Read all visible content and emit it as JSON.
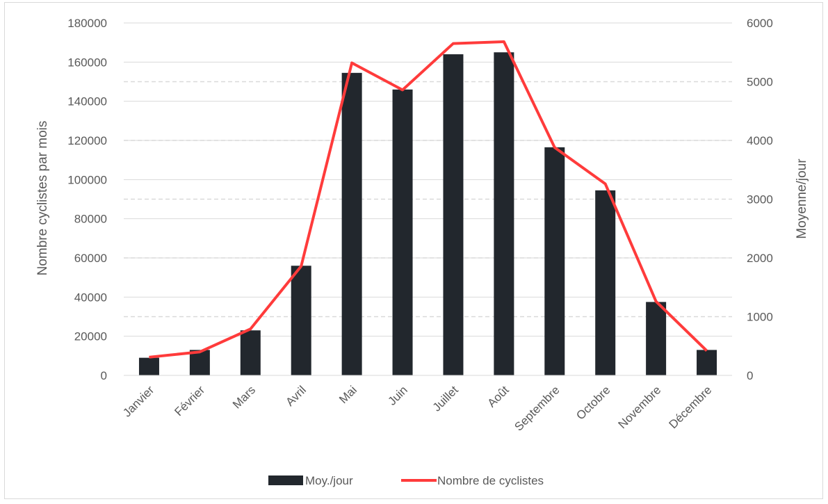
{
  "chart_data": {
    "type": "bar",
    "categories": [
      "Janvier",
      "Février",
      "Mars",
      "Avril",
      "Mai",
      "Juin",
      "Juillet",
      "Août",
      "Septembre",
      "Octobre",
      "Novembre",
      "Décembre"
    ],
    "series": [
      {
        "name": "Moy./jour",
        "type": "bar",
        "axis": "left",
        "color": "#22272d",
        "values": [
          9000,
          13000,
          23000,
          56000,
          154500,
          146000,
          164000,
          165000,
          116500,
          94500,
          37500,
          13000
        ]
      },
      {
        "name": "Nombre de cyclistes",
        "type": "line",
        "axis": "right",
        "color": "#ff3b3b",
        "values": [
          310,
          400,
          790,
          1860,
          5320,
          4860,
          5650,
          5680,
          3880,
          3260,
          1260,
          420
        ]
      }
    ],
    "ylabel": "Nombre cyclistes par mois",
    "y2label": "Moyenne/jour",
    "ylim": [
      0,
      180000
    ],
    "y2lim": [
      0,
      6000
    ],
    "yticks": [
      "0",
      "20000",
      "40000",
      "60000",
      "80000",
      "100000",
      "120000",
      "140000",
      "160000",
      "180000"
    ],
    "y2ticks": [
      "0",
      "1000",
      "2000",
      "3000",
      "4000",
      "5000",
      "6000"
    ],
    "grid": true,
    "legend_position": "bottom"
  }
}
